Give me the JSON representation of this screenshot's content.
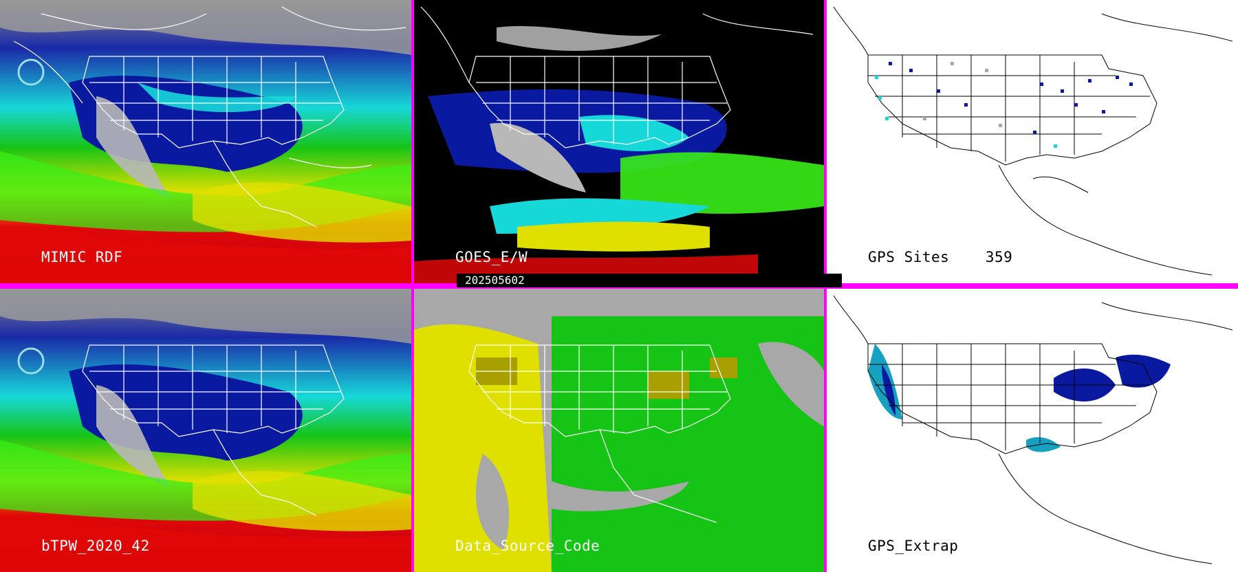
{
  "panels": [
    {
      "id": "p1",
      "label": "MIMIC RDF"
    },
    {
      "id": "p2",
      "label": "GOES_E/W"
    },
    {
      "id": "p3",
      "label": "GPS Sites    359"
    },
    {
      "id": "p4",
      "label": "bTPW_2020_42"
    },
    {
      "id": "p5",
      "label": "Data_Source_Code"
    },
    {
      "id": "p6",
      "label": "GPS_Extrap"
    }
  ],
  "timestamp": "202505602",
  "colors": {
    "separator": "#ff00ff",
    "cyan": "#17d8d8",
    "blue": "#0a1aa0",
    "navy": "#000a80",
    "green": "#16c416",
    "lime": "#38ee18",
    "yellow": "#e0e000",
    "olive": "#a8a000",
    "red": "#e00808",
    "gray": "#a8a8a8"
  }
}
